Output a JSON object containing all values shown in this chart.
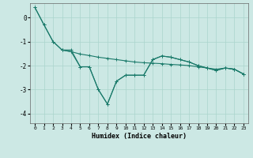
{
  "background_color": "#cce8e4",
  "grid_color": "#aad4cc",
  "line_color": "#1a7a6a",
  "xlabel": "Humidex (Indice chaleur)",
  "xlim": [
    -0.5,
    23.5
  ],
  "ylim": [
    -4.4,
    0.6
  ],
  "yticks": [
    0,
    -1,
    -2,
    -3,
    -4
  ],
  "xticks": [
    0,
    1,
    2,
    3,
    4,
    5,
    6,
    7,
    8,
    9,
    10,
    11,
    12,
    13,
    14,
    15,
    16,
    17,
    18,
    19,
    20,
    21,
    22,
    23
  ],
  "line1_x": [
    0,
    1,
    2,
    3,
    4,
    5,
    6,
    7,
    8,
    9,
    10,
    11,
    12,
    13,
    14,
    15,
    16,
    17,
    18,
    19,
    20,
    21,
    22,
    23
  ],
  "line1_y": [
    0.42,
    -0.3,
    -1.0,
    -1.35,
    -1.35,
    -2.05,
    -2.05,
    -3.0,
    -3.6,
    -2.65,
    -2.4,
    -2.4,
    -2.4,
    -1.75,
    -1.6,
    -1.65,
    -1.75,
    -1.85,
    -2.0,
    -2.1,
    -2.2,
    -2.1,
    -2.15,
    -2.35
  ],
  "line2_x": [
    0,
    1,
    2,
    3,
    4,
    5,
    6,
    7,
    8,
    9,
    10,
    11,
    12,
    13,
    14,
    15,
    16,
    17,
    18,
    19,
    20,
    21,
    22,
    23
  ],
  "line2_y": [
    0.42,
    -0.3,
    -1.0,
    -1.35,
    -1.42,
    -1.52,
    -1.58,
    -1.65,
    -1.7,
    -1.75,
    -1.8,
    -1.85,
    -1.88,
    -1.9,
    -1.92,
    -1.95,
    -1.97,
    -2.0,
    -2.05,
    -2.1,
    -2.15,
    -2.1,
    -2.15,
    -2.35
  ],
  "line3_x": [
    3,
    4,
    5,
    6,
    7,
    8,
    9,
    10,
    11,
    12,
    13,
    14,
    15,
    16,
    17,
    18,
    19,
    20,
    21,
    22,
    23
  ],
  "line3_y": [
    -1.35,
    -1.42,
    -2.05,
    -2.05,
    -3.0,
    -3.6,
    -2.65,
    -2.4,
    -2.4,
    -2.4,
    -1.75,
    -1.6,
    -1.65,
    -1.75,
    -1.85,
    -2.0,
    -2.1,
    -2.2,
    -2.1,
    -2.15,
    -2.35
  ]
}
